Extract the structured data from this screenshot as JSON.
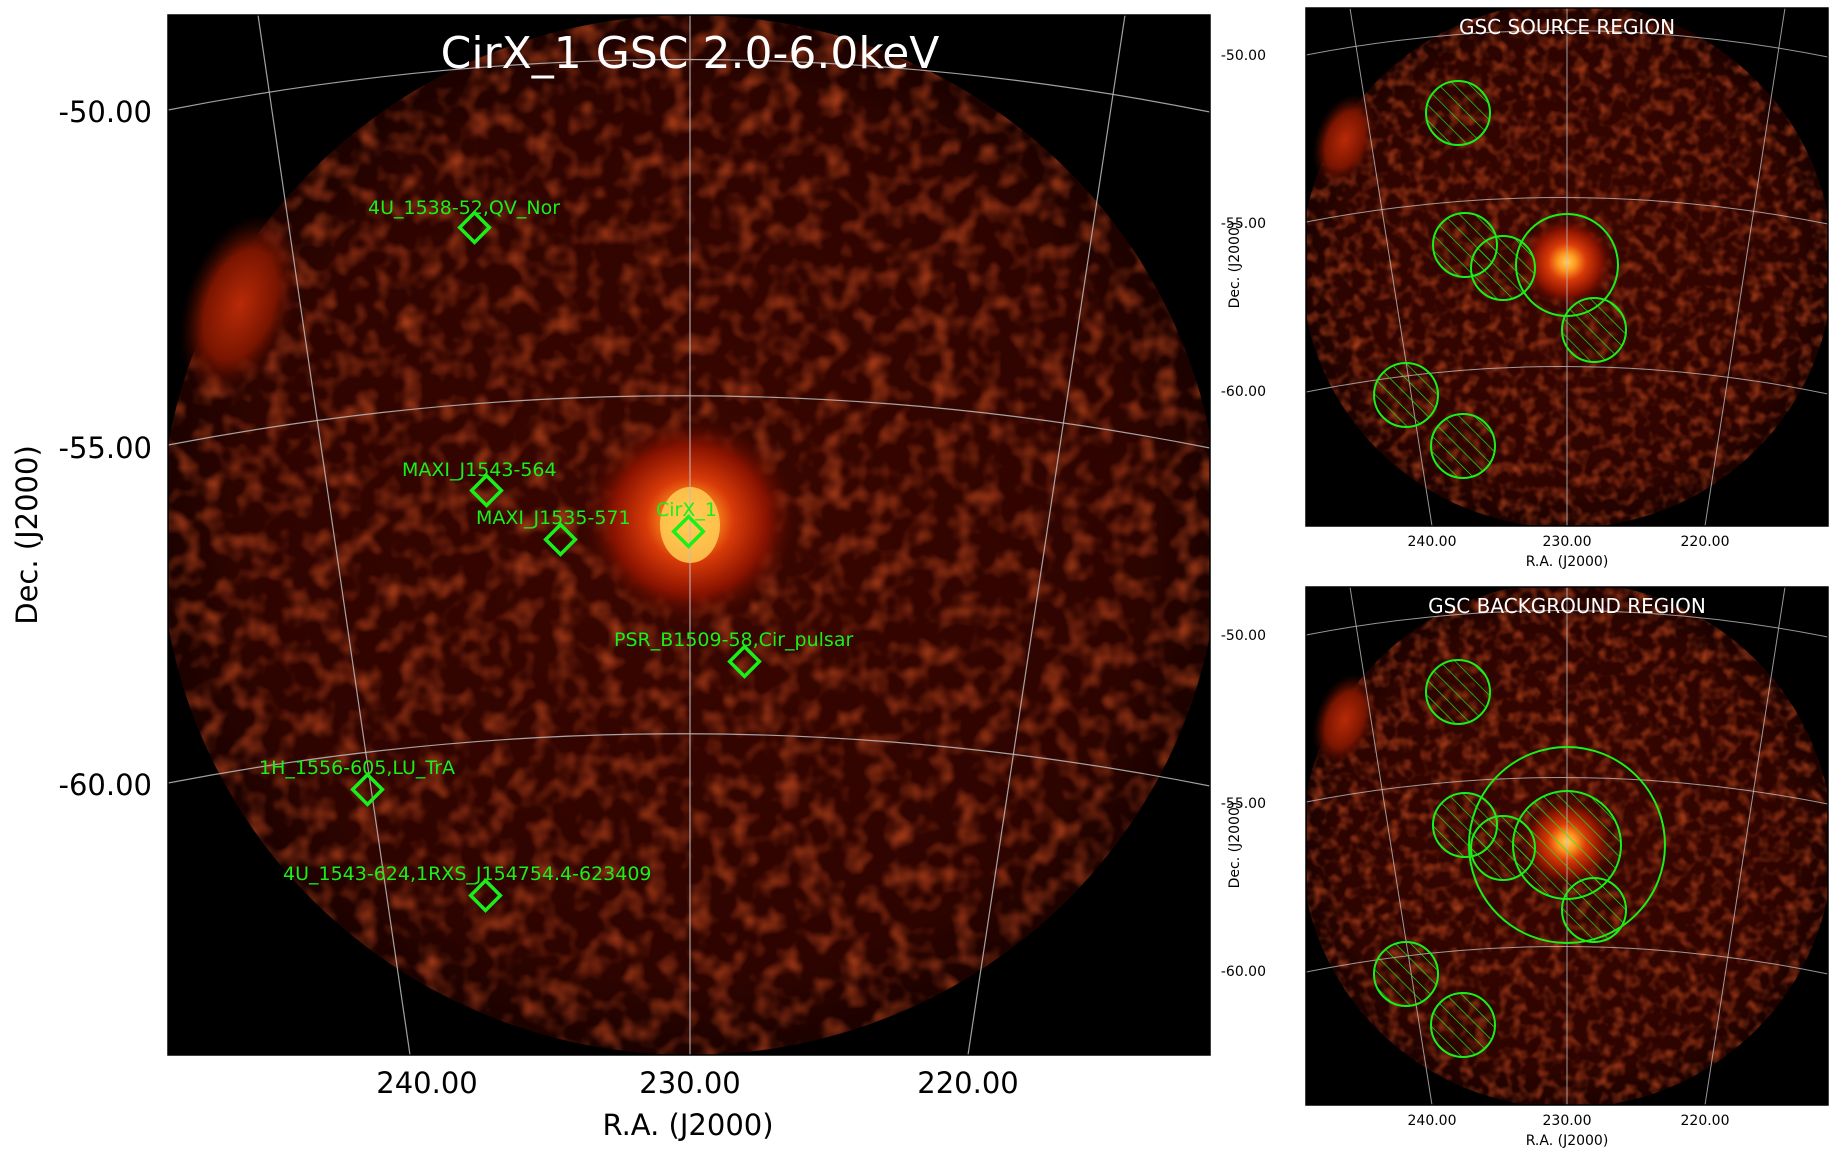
{
  "main_panel": {
    "title": "CirX_1 GSC 2.0-6.0keV",
    "xlabel": "R.A. (J2000)",
    "ylabel": "Dec. (J2000)",
    "ra_ticks": [
      "240.00",
      "230.00",
      "220.00"
    ],
    "dec_ticks": [
      "-50.00",
      "-55.00",
      "-60.00"
    ],
    "sources": [
      {
        "label": "4U_1538-52,QV_Nor"
      },
      {
        "label": "MAXI_J1543-564"
      },
      {
        "label": "MAXI_J1535-571"
      },
      {
        "label": "CirX_1"
      },
      {
        "label": "PSR_B1509-58,Cir_pulsar"
      },
      {
        "label": "1H_1556-605,LU_TrA"
      },
      {
        "label": "4U_1543-624,1RXS_J154754.4-623409"
      }
    ]
  },
  "source_panel": {
    "title": "GSC SOURCE REGION",
    "xlabel": "R.A. (J2000)",
    "ylabel": "Dec. (J2000)",
    "ra_ticks": [
      "240.00",
      "230.00",
      "220.00"
    ],
    "dec_ticks": [
      "-50.00",
      "-55.00",
      "-60.00"
    ]
  },
  "background_panel": {
    "title": "GSC BACKGROUND REGION",
    "xlabel": "R.A. (J2000)",
    "ylabel": "Dec. (J2000)",
    "ra_ticks": [
      "240.00",
      "230.00",
      "220.00"
    ],
    "dec_ticks": [
      "-50.00",
      "-55.00",
      "-60.00"
    ]
  },
  "colors": {
    "marker": "#19f019",
    "background": "#000000",
    "emission_core": "#ffb23a",
    "emission_diffuse": "#5a0a00",
    "grid": "#bdbdbd"
  }
}
